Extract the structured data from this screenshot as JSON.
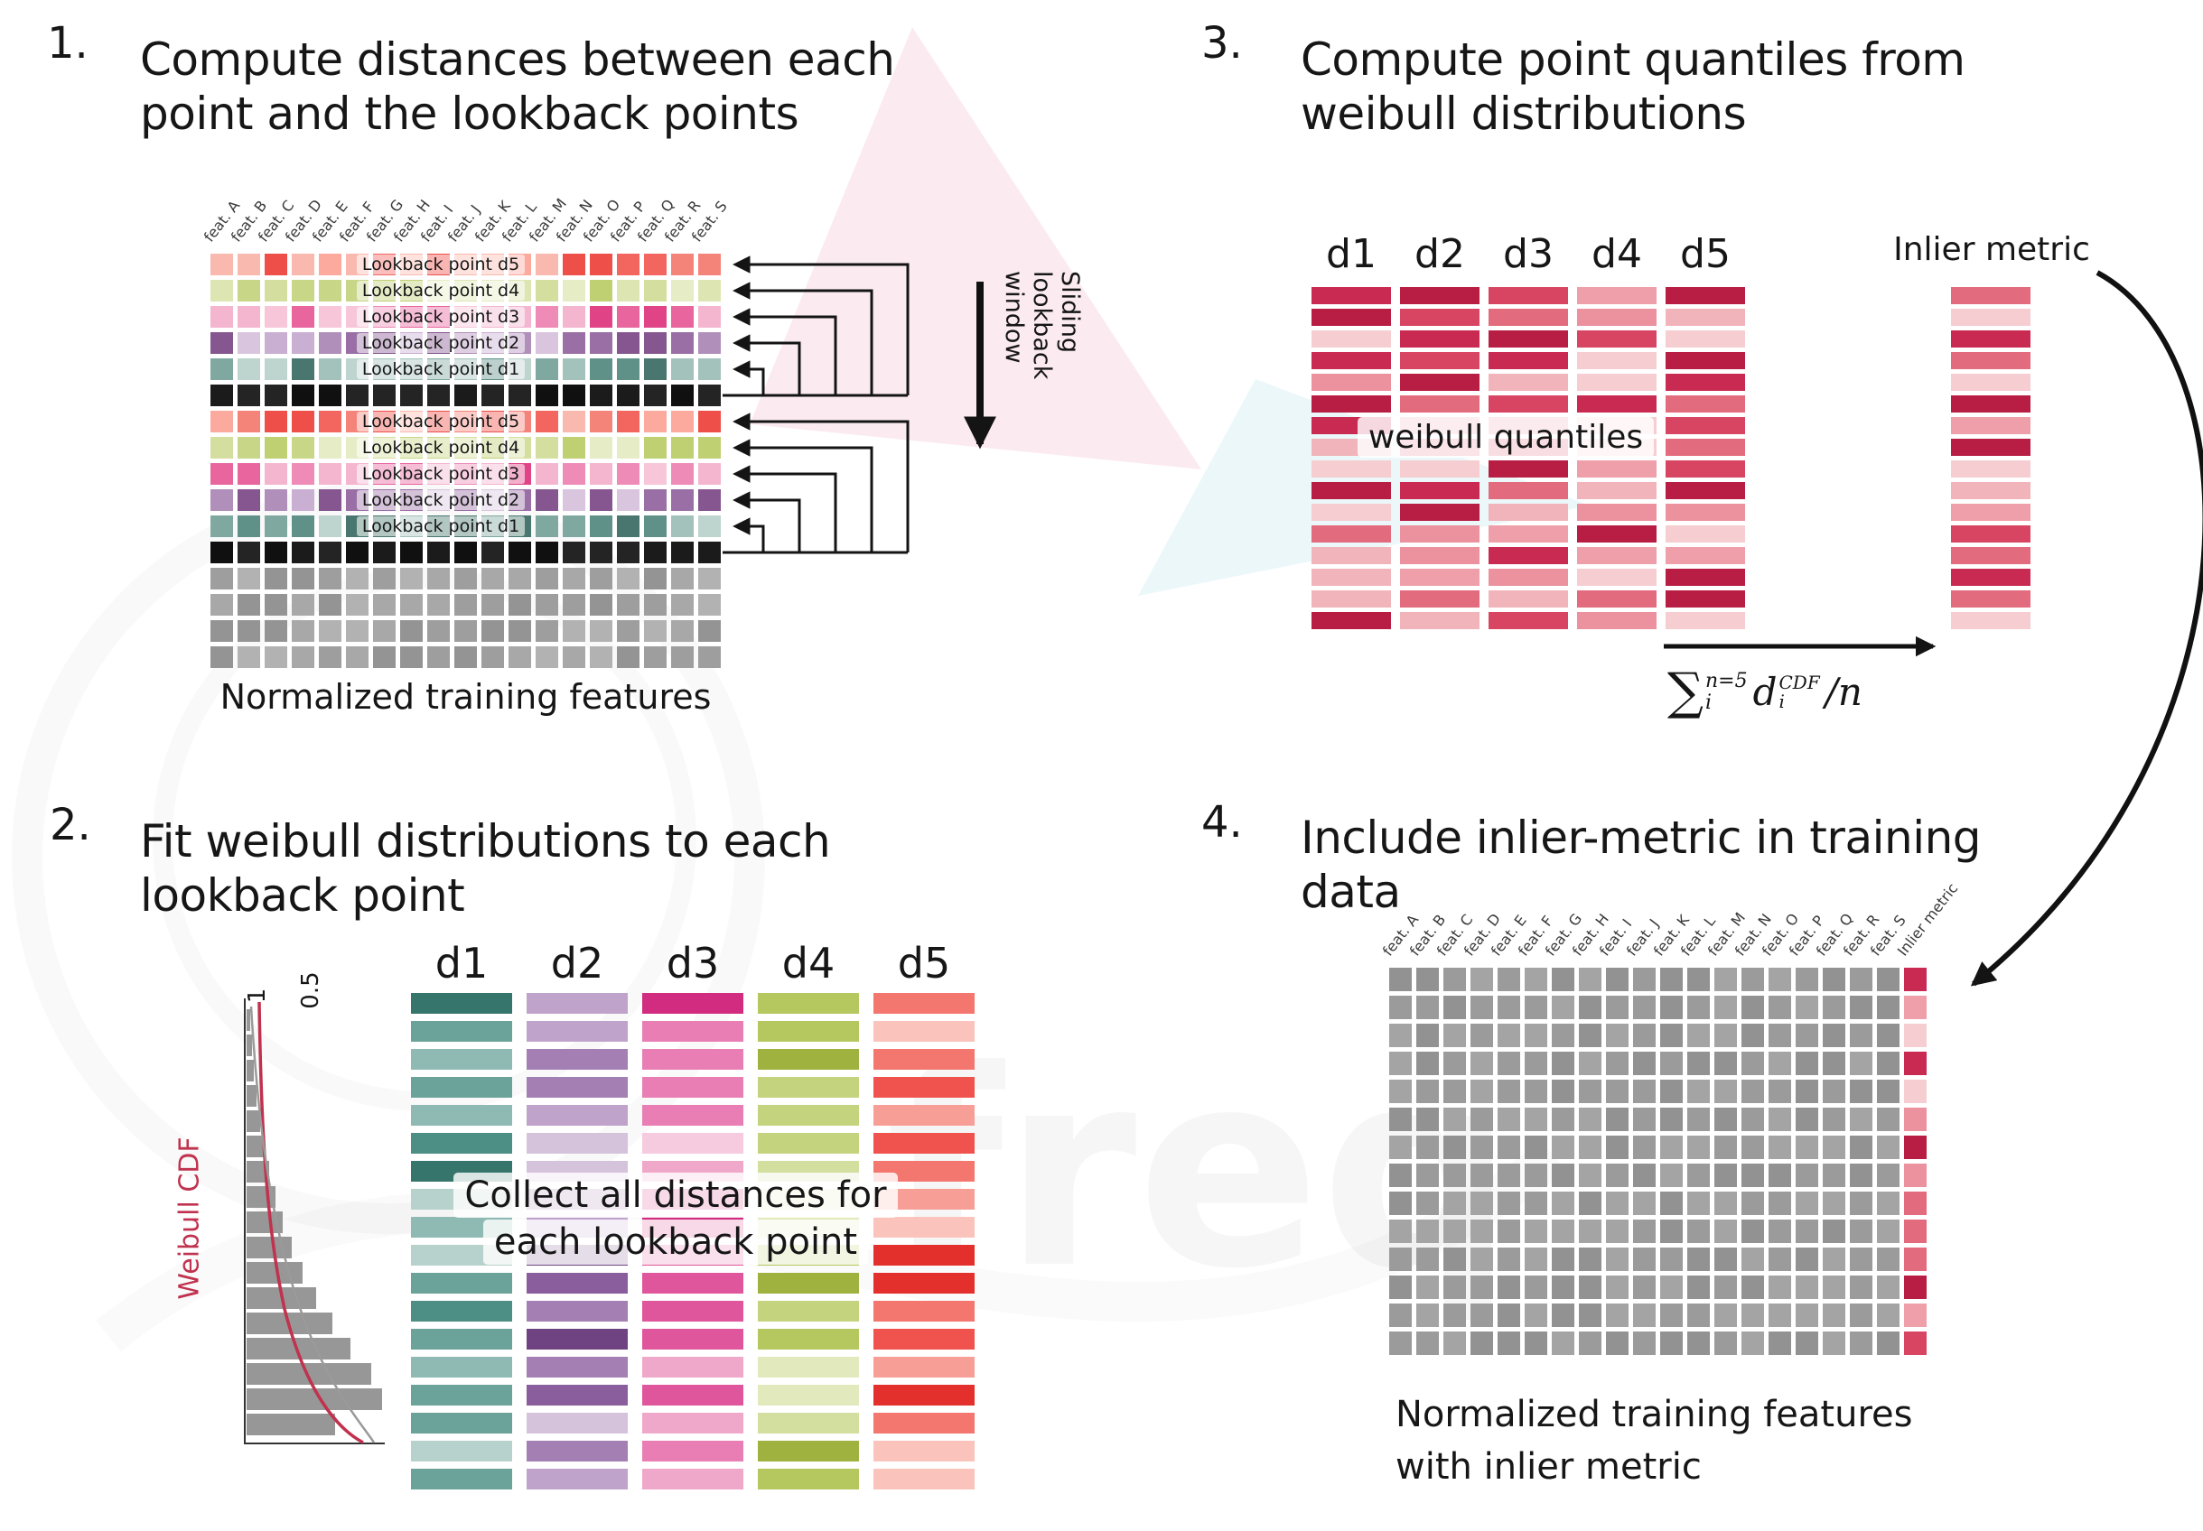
{
  "panel1": {
    "number": "1.",
    "title": [
      "Compute distances between each",
      "point and the lookback points"
    ],
    "caption": "Normalized training features",
    "sliding_label": "Sliding lookback window",
    "columns": [
      "feat. A",
      "feat. B",
      "feat. C",
      "feat. D",
      "feat. E",
      "feat. F",
      "feat. G",
      "feat. H",
      "feat. I",
      "feat. J",
      "feat. K",
      "feat. L",
      "feat. M",
      "feat. N",
      "feat. O",
      "feat. P",
      "feat. Q",
      "feat. R",
      "feat. S"
    ],
    "lookback_rows": [
      {
        "label": "Lookback point d5",
        "palette": [
          "#f2665f",
          "#f4837a",
          "#f9b9ae",
          "#ef4f49",
          "#fca99e"
        ]
      },
      {
        "label": "Lookback point d4",
        "palette": [
          "#d4df9f",
          "#dde6b3",
          "#c8d687",
          "#e6ecc6",
          "#bfd073"
        ]
      },
      {
        "label": "Lookback point d3",
        "palette": [
          "#e8659e",
          "#ee8cb7",
          "#f4b5cf",
          "#e04487",
          "#f7c6d9"
        ]
      },
      {
        "label": "Lookback point d2",
        "palette": [
          "#9a6fa5",
          "#b08fba",
          "#c9afd1",
          "#85568f",
          "#d9c6de"
        ]
      },
      {
        "label": "Lookback point d1",
        "palette": [
          "#5f9189",
          "#7fa8a0",
          "#a3c2bb",
          "#49776f",
          "#bed4cf"
        ]
      }
    ],
    "separator_palette": [
      "#1b1b1b",
      "#242424",
      "#101010"
    ],
    "gray_palette": [
      "#9e9e9e",
      "#a8a8a8",
      "#949494",
      "#b2b2b2"
    ],
    "gray_row_count": 4,
    "group_count": 2
  },
  "panel2": {
    "number": "2.",
    "title": [
      "Fit weibull distributions to each",
      "lookback point"
    ],
    "plot": {
      "ylabel": "Weibull CDF",
      "ticks": [
        "1",
        "0.5"
      ],
      "curve_color": "#c0324e",
      "bar_color": "#8c8c8c",
      "hist_widths": [
        4,
        6,
        8,
        11,
        15,
        19,
        25,
        32,
        40,
        50,
        62,
        77,
        95,
        115,
        138,
        150,
        98
      ]
    },
    "overlay": [
      "Collect all distances for",
      "each lookback point"
    ],
    "columns": [
      {
        "label": "d1",
        "palette": [
          "#4d8e85",
          "#6ba39b",
          "#8fbab3",
          "#35756c",
          "#b7d2cc"
        ]
      },
      {
        "label": "d2",
        "palette": [
          "#8a5d9c",
          "#a47fb3",
          "#bfa3ca",
          "#6f4382",
          "#d5c3dc"
        ]
      },
      {
        "label": "d3",
        "palette": [
          "#e0569c",
          "#e87eb3",
          "#f0a8ca",
          "#d12c7f",
          "#f6cbdf"
        ]
      },
      {
        "label": "d4",
        "palette": [
          "#b5c75f",
          "#c4d37e",
          "#d3df9e",
          "#9fb23f",
          "#e2eabd"
        ]
      },
      {
        "label": "d5",
        "palette": [
          "#f0524d",
          "#f3766f",
          "#f79f97",
          "#e3302c",
          "#fac4bc"
        ]
      }
    ],
    "bars_per_column": 18
  },
  "panel3": {
    "number": "3.",
    "title": [
      "Compute point quantiles from",
      "weibull distributions"
    ],
    "column_labels": [
      "d1",
      "d2",
      "d3",
      "d4",
      "d5"
    ],
    "overlay": "weibull quantiles",
    "inlier_label": "Inlier metric",
    "quantile_palette": [
      "#f6cdd1",
      "#f2b4bb",
      "#eb929e",
      "#e36b7e",
      "#d84562",
      "#c92a52",
      "#b81d43",
      "#ef9fa9"
    ],
    "bars_per_column": 16,
    "formula": {
      "sum": "∑",
      "sum_sup": "n=5",
      "sum_sub": "i",
      "var": "d",
      "var_sup": "CDF",
      "var_sub": "i",
      "tail": "/n"
    }
  },
  "panel4": {
    "number": "4.",
    "title": [
      "Include inlier-metric in training",
      "data"
    ],
    "caption": [
      "Normalized training features",
      "with inlier metric"
    ],
    "columns": [
      "feat. A",
      "feat. B",
      "feat. C",
      "feat. D",
      "feat. E",
      "feat. F",
      "feat. G",
      "feat. H",
      "feat. I",
      "feat. J",
      "feat. K",
      "feat. L",
      "feat. M",
      "feat. N",
      "feat. O",
      "feat. P",
      "feat. Q",
      "feat. R",
      "feat. S"
    ],
    "inlier_column": "Inlier metric",
    "gray_palette": [
      "#9b9b9b",
      "#a4a4a4",
      "#929292"
    ],
    "rows": 14
  },
  "watermark": {
    "text": "freq"
  },
  "colors": {
    "ink": "#141414",
    "weibull_red": "#c0324e"
  }
}
